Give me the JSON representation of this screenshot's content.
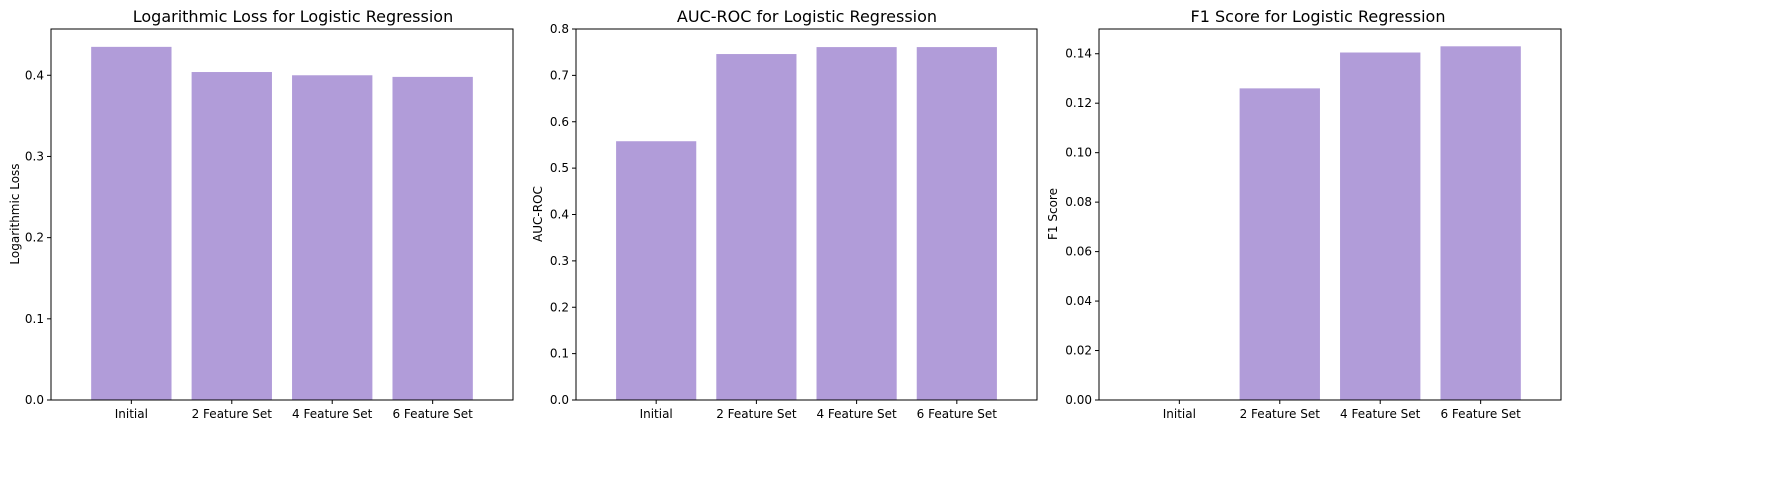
{
  "chart_data": [
    {
      "type": "bar",
      "title": "Logarithmic Loss for Logistic Regression",
      "xlabel": "",
      "ylabel": "Logarithmic Loss",
      "categories": [
        "Initial",
        "2 Feature Set",
        "4 Feature Set",
        "6 Feature Set"
      ],
      "values": [
        0.435,
        0.404,
        0.4,
        0.398
      ],
      "ylim": [
        0,
        0.457
      ],
      "yticks": [
        0.0,
        0.1,
        0.2,
        0.3,
        0.4
      ],
      "tick_labels": [
        "0.0",
        "0.1",
        "0.2",
        "0.3",
        "0.4"
      ],
      "bar_color": "#b19cd9",
      "grid": false
    },
    {
      "type": "bar",
      "title": "AUC-ROC for Logistic Regression",
      "xlabel": "",
      "ylabel": "AUC-ROC",
      "categories": [
        "Initial",
        "2 Feature Set",
        "4 Feature Set",
        "6 Feature Set"
      ],
      "values": [
        0.558,
        0.746,
        0.761,
        0.761
      ],
      "ylim": [
        0,
        0.8
      ],
      "yticks": [
        0.0,
        0.1,
        0.2,
        0.3,
        0.4,
        0.5,
        0.6,
        0.7,
        0.8
      ],
      "tick_labels": [
        "0.0",
        "0.1",
        "0.2",
        "0.3",
        "0.4",
        "0.5",
        "0.6",
        "0.7",
        "0.8"
      ],
      "bar_color": "#b19cd9",
      "grid": false
    },
    {
      "type": "bar",
      "title": "F1 Score for Logistic Regression",
      "xlabel": "",
      "ylabel": "F1 Score",
      "categories": [
        "Initial",
        "2 Feature Set",
        "4 Feature Set",
        "6 Feature Set"
      ],
      "values": [
        0.0,
        0.126,
        0.1405,
        0.143
      ],
      "ylim": [
        0,
        0.15
      ],
      "yticks": [
        0.0,
        0.02,
        0.04,
        0.06,
        0.08,
        0.1,
        0.12,
        0.14
      ],
      "tick_labels": [
        "0.00",
        "0.02",
        "0.04",
        "0.06",
        "0.08",
        "0.10",
        "0.12",
        "0.14"
      ],
      "bar_color": "#b19cd9",
      "grid": false
    }
  ]
}
